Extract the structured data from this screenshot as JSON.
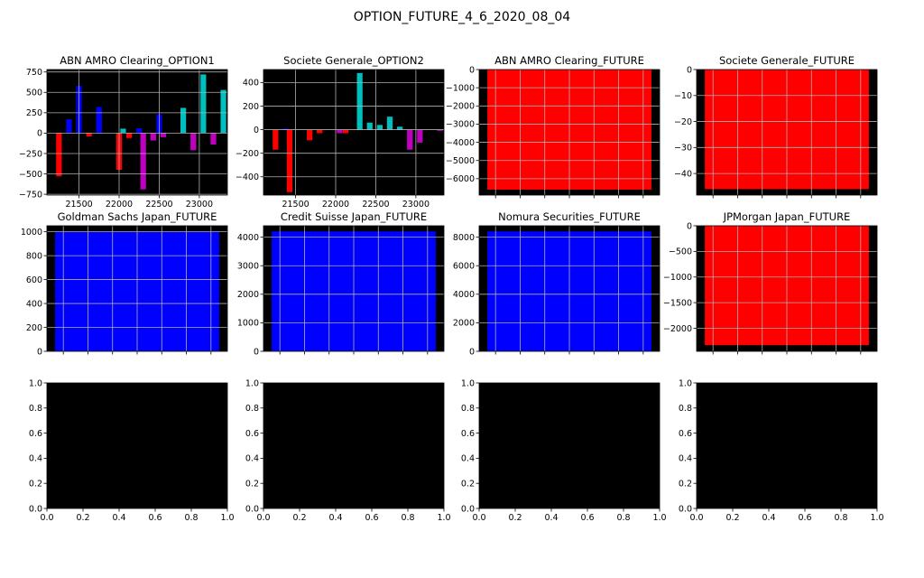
{
  "figure_title": "OPTION_FUTURE_4_6_2020_08_04",
  "colors": {
    "background": "#000000",
    "grid": "#b0b0b0",
    "red": "#ff0000",
    "blue": "#0000ff",
    "cyan": "#00bfbf",
    "magenta": "#bf00bf"
  },
  "chart_data": [
    {
      "type": "bar",
      "title": "ABN AMRO Clearing_OPTION1",
      "xlim": [
        21100,
        23350
      ],
      "ylim": [
        -760,
        780
      ],
      "xticks": [
        21500,
        22000,
        22500,
        23000
      ],
      "xtick_labels": [
        "21500",
        "22000",
        "22500",
        "23000"
      ],
      "yticks": [
        -750,
        -500,
        -250,
        0,
        250,
        500,
        750
      ],
      "ytick_labels": [
        "−750",
        "−500",
        "−250",
        "0",
        "250",
        "500",
        "750"
      ],
      "grid": true,
      "bar_width": 70,
      "bars": [
        {
          "x": 21250,
          "value": -530,
          "color": "red"
        },
        {
          "x": 21375,
          "value": 170,
          "color": "blue"
        },
        {
          "x": 21500,
          "value": 580,
          "color": "blue"
        },
        {
          "x": 21625,
          "value": -40,
          "color": "red"
        },
        {
          "x": 21750,
          "value": 320,
          "color": "blue"
        },
        {
          "x": 22000,
          "value": -450,
          "color": "red"
        },
        {
          "x": 22050,
          "value": 55,
          "color": "cyan"
        },
        {
          "x": 22125,
          "value": -60,
          "color": "red"
        },
        {
          "x": 22250,
          "value": 60,
          "color": "blue"
        },
        {
          "x": 22300,
          "value": -690,
          "color": "magenta"
        },
        {
          "x": 22425,
          "value": -90,
          "color": "magenta"
        },
        {
          "x": 22500,
          "value": 230,
          "color": "blue"
        },
        {
          "x": 22550,
          "value": -50,
          "color": "magenta"
        },
        {
          "x": 22800,
          "value": 310,
          "color": "cyan"
        },
        {
          "x": 22925,
          "value": -210,
          "color": "magenta"
        },
        {
          "x": 23050,
          "value": 720,
          "color": "cyan"
        },
        {
          "x": 23175,
          "value": -140,
          "color": "magenta"
        },
        {
          "x": 23300,
          "value": 530,
          "color": "cyan"
        }
      ]
    },
    {
      "type": "bar",
      "title": "Societe Generale_OPTION2",
      "xlim": [
        21100,
        23350
      ],
      "ylim": [
        -555,
        510
      ],
      "xticks": [
        21500,
        22000,
        22500,
        23000
      ],
      "xtick_labels": [
        "21500",
        "22000",
        "22500",
        "23000"
      ],
      "yticks": [
        -400,
        -200,
        0,
        200,
        400
      ],
      "ytick_labels": [
        "−400",
        "−200",
        "0",
        "200",
        "400"
      ],
      "grid": true,
      "bar_width": 70,
      "bars": [
        {
          "x": 21250,
          "value": -170,
          "color": "red"
        },
        {
          "x": 21375,
          "value": 10,
          "color": "blue"
        },
        {
          "x": 21425,
          "value": -530,
          "color": "red"
        },
        {
          "x": 21675,
          "value": -90,
          "color": "red"
        },
        {
          "x": 21800,
          "value": -30,
          "color": "red"
        },
        {
          "x": 22050,
          "value": -30,
          "color": "magenta"
        },
        {
          "x": 22125,
          "value": -30,
          "color": "red"
        },
        {
          "x": 22300,
          "value": 480,
          "color": "cyan"
        },
        {
          "x": 22425,
          "value": 60,
          "color": "cyan"
        },
        {
          "x": 22550,
          "value": 40,
          "color": "cyan"
        },
        {
          "x": 22675,
          "value": 110,
          "color": "cyan"
        },
        {
          "x": 22800,
          "value": 25,
          "color": "cyan"
        },
        {
          "x": 22925,
          "value": -170,
          "color": "magenta"
        },
        {
          "x": 23050,
          "value": -110,
          "color": "magenta"
        },
        {
          "x": 23300,
          "value": -10,
          "color": "magenta"
        }
      ]
    },
    {
      "type": "bar",
      "title": "ABN AMRO Clearing_FUTURE",
      "xlim": [
        -0.55,
        0.55
      ],
      "ylim": [
        -6900,
        0
      ],
      "yticks": [
        -6000,
        -5000,
        -4000,
        -3000,
        -2000,
        -1000,
        0
      ],
      "ytick_labels": [
        "−6000",
        "−5000",
        "−4000",
        "−3000",
        "−2000",
        "−1000",
        "0"
      ],
      "grid": true,
      "bar_width": 1.0,
      "bars": [
        {
          "x": 0,
          "value": -6600,
          "color": "red"
        }
      ]
    },
    {
      "type": "bar",
      "title": "Societe Generale_FUTURE",
      "xlim": [
        -0.55,
        0.55
      ],
      "ylim": [
        -48.3,
        0
      ],
      "yticks": [
        -40,
        -30,
        -20,
        -10,
        0
      ],
      "ytick_labels": [
        "−40",
        "−30",
        "−20",
        "−10",
        "0"
      ],
      "grid": true,
      "bar_width": 1.0,
      "bars": [
        {
          "x": 0,
          "value": -46,
          "color": "red"
        }
      ]
    },
    {
      "type": "bar",
      "title": "Goldman Sachs Japan_FUTURE",
      "xlim": [
        -0.55,
        0.55
      ],
      "ylim": [
        0,
        1050
      ],
      "yticks": [
        0,
        200,
        400,
        600,
        800,
        1000
      ],
      "ytick_labels": [
        "0",
        "200",
        "400",
        "600",
        "800",
        "1000"
      ],
      "grid": true,
      "bar_width": 1.0,
      "bars": [
        {
          "x": 0,
          "value": 1000,
          "color": "blue"
        }
      ]
    },
    {
      "type": "bar",
      "title": "Credit Suisse Japan_FUTURE",
      "xlim": [
        -0.55,
        0.55
      ],
      "ylim": [
        0,
        4400
      ],
      "yticks": [
        0,
        1000,
        2000,
        3000,
        4000
      ],
      "ytick_labels": [
        "0",
        "1000",
        "2000",
        "3000",
        "4000"
      ],
      "grid": true,
      "bar_width": 1.0,
      "bars": [
        {
          "x": 0,
          "value": 4200,
          "color": "blue"
        }
      ]
    },
    {
      "type": "bar",
      "title": "Nomura Securities_FUTURE",
      "xlim": [
        -0.55,
        0.55
      ],
      "ylim": [
        0,
        8800
      ],
      "yticks": [
        0,
        2000,
        4000,
        6000,
        8000
      ],
      "ytick_labels": [
        "0",
        "2000",
        "4000",
        "6000",
        "8000"
      ],
      "grid": true,
      "bar_width": 1.0,
      "bars": [
        {
          "x": 0,
          "value": 8400,
          "color": "blue"
        }
      ]
    },
    {
      "type": "bar",
      "title": "JPMorgan Japan_FUTURE",
      "xlim": [
        -0.55,
        0.55
      ],
      "ylim": [
        -2450,
        0
      ],
      "yticks": [
        -2000,
        -1500,
        -1000,
        -500,
        0
      ],
      "ytick_labels": [
        "−2000",
        "−1500",
        "−1000",
        "−500",
        "0"
      ],
      "grid": true,
      "bar_width": 1.0,
      "bars": [
        {
          "x": 0,
          "value": -2330,
          "color": "red"
        }
      ]
    },
    {
      "type": "empty",
      "title": "",
      "xlim": [
        0,
        1
      ],
      "ylim": [
        0,
        1
      ],
      "xticks": [
        0,
        0.2,
        0.4,
        0.6,
        0.8,
        1.0
      ],
      "xtick_labels": [
        "0.0",
        "0.2",
        "0.4",
        "0.6",
        "0.8",
        "1.0"
      ],
      "yticks": [
        0,
        0.2,
        0.4,
        0.6,
        0.8,
        1.0
      ],
      "ytick_labels": [
        "0.0",
        "0.2",
        "0.4",
        "0.6",
        "0.8",
        "1.0"
      ],
      "grid": false,
      "bars": []
    },
    {
      "type": "empty",
      "title": "",
      "xlim": [
        0,
        1
      ],
      "ylim": [
        0,
        1
      ],
      "xticks": [
        0,
        0.2,
        0.4,
        0.6,
        0.8,
        1.0
      ],
      "xtick_labels": [
        "0.0",
        "0.2",
        "0.4",
        "0.6",
        "0.8",
        "1.0"
      ],
      "yticks": [
        0,
        0.2,
        0.4,
        0.6,
        0.8,
        1.0
      ],
      "ytick_labels": [
        "0.0",
        "0.2",
        "0.4",
        "0.6",
        "0.8",
        "1.0"
      ],
      "grid": false,
      "bars": []
    },
    {
      "type": "empty",
      "title": "",
      "xlim": [
        0,
        1
      ],
      "ylim": [
        0,
        1
      ],
      "xticks": [
        0,
        0.2,
        0.4,
        0.6,
        0.8,
        1.0
      ],
      "xtick_labels": [
        "0.0",
        "0.2",
        "0.4",
        "0.6",
        "0.8",
        "1.0"
      ],
      "yticks": [
        0,
        0.2,
        0.4,
        0.6,
        0.8,
        1.0
      ],
      "ytick_labels": [
        "0.0",
        "0.2",
        "0.4",
        "0.6",
        "0.8",
        "1.0"
      ],
      "grid": false,
      "bars": []
    },
    {
      "type": "empty",
      "title": "",
      "xlim": [
        0,
        1
      ],
      "ylim": [
        0,
        1
      ],
      "xticks": [
        0,
        0.2,
        0.4,
        0.6,
        0.8,
        1.0
      ],
      "xtick_labels": [
        "0.0",
        "0.2",
        "0.4",
        "0.6",
        "0.8",
        "1.0"
      ],
      "yticks": [
        0,
        0.2,
        0.4,
        0.6,
        0.8,
        1.0
      ],
      "ytick_labels": [
        "0.0",
        "0.2",
        "0.4",
        "0.6",
        "0.8",
        "1.0"
      ],
      "grid": false,
      "bars": []
    }
  ]
}
